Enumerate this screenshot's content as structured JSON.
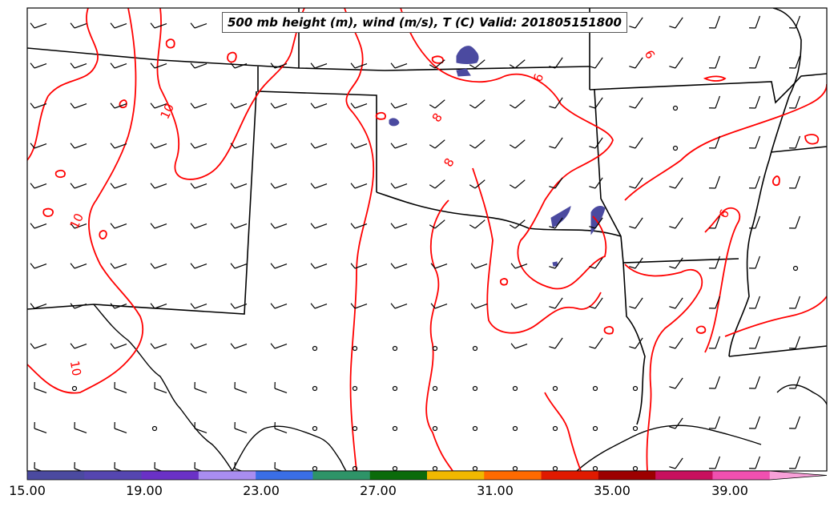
{
  "title": "500 mb height (m), wind (m/s), T (C) Valid: 201805151800",
  "contour_labels": [
    "10",
    "10",
    "10",
    "8",
    "8",
    "6",
    "6",
    "6"
  ],
  "colorbar": {
    "tick_labels": [
      "15.00",
      "19.00",
      "23.00",
      "27.00",
      "31.00",
      "35.00",
      "39.00"
    ],
    "colors": [
      "#4b4aa0",
      "#5546b0",
      "#6a31c6",
      "#a98df0",
      "#3a6ee6",
      "#2e9468",
      "#0b6b0b",
      "#f0b800",
      "#ff6a00",
      "#e01a00",
      "#9c0000",
      "#c8105e",
      "#f050b0",
      "#f8a0d8"
    ]
  },
  "contour_color": "#ff0000",
  "fill_color": "#4b4aa0"
}
